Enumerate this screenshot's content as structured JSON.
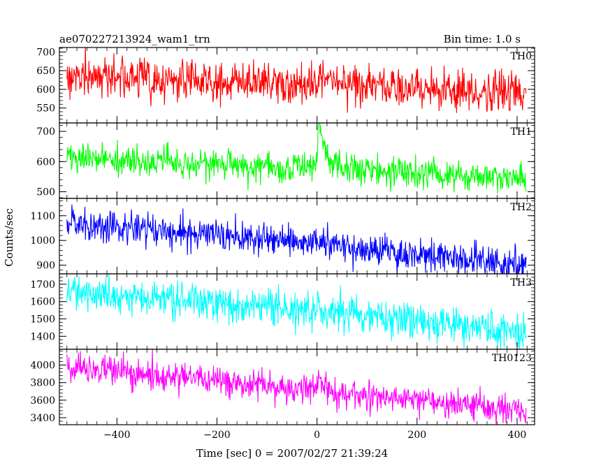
{
  "header": {
    "title": "ae070227213924_wam1_trn",
    "bin_time": "Bin time: 1.0 s"
  },
  "chart_data": {
    "type": "line",
    "xlabel": "Time [sec] 0 = 2007/02/27 21:39:24",
    "ylabel": "Counts/sec",
    "xlim": [
      -515,
      435
    ],
    "x_ticks": [
      -400,
      -200,
      0,
      200,
      400
    ],
    "x_tick_labels": [
      "−400",
      "−200",
      "0",
      "200",
      "400"
    ],
    "sample_start": -500,
    "sample_end": 418,
    "sample_step": 1,
    "panels": [
      {
        "name": "TH0",
        "color": "#ff0000",
        "ylim": [
          510,
          712
        ],
        "yticks": [
          550,
          600,
          650,
          700
        ],
        "trend": [
          [
            -500,
            640
          ],
          [
            -10,
            612
          ],
          [
            0,
            618
          ],
          [
            3,
            660
          ],
          [
            15,
            640
          ],
          [
            40,
            615
          ],
          [
            418,
            588
          ]
        ],
        "noise_sd": 27
      },
      {
        "name": "TH1",
        "color": "#00ff00",
        "ylim": [
          478,
          728
        ],
        "yticks": [
          500,
          600,
          700
        ],
        "trend": [
          [
            -500,
            610
          ],
          [
            -10,
            578
          ],
          [
            0,
            590
          ],
          [
            3,
            725
          ],
          [
            15,
            640
          ],
          [
            40,
            580
          ],
          [
            418,
            540
          ]
        ],
        "noise_sd": 24
      },
      {
        "name": "TH2",
        "color": "#0000ff",
        "ylim": [
          865,
          1170
        ],
        "yticks": [
          900,
          1000,
          1100
        ],
        "trend": [
          [
            -500,
            1075
          ],
          [
            -10,
            985
          ],
          [
            0,
            985
          ],
          [
            3,
            1000
          ],
          [
            15,
            990
          ],
          [
            40,
            975
          ],
          [
            418,
            900
          ]
        ],
        "noise_sd": 33
      },
      {
        "name": "TH3",
        "color": "#00ffff",
        "ylim": [
          1325,
          1760
        ],
        "yticks": [
          1400,
          1500,
          1600,
          1700
        ],
        "trend": [
          [
            -500,
            1660
          ],
          [
            -10,
            1545
          ],
          [
            0,
            1550
          ],
          [
            3,
            1560
          ],
          [
            15,
            1550
          ],
          [
            40,
            1540
          ],
          [
            418,
            1420
          ]
        ],
        "noise_sd": 50
      },
      {
        "name": "TH0123",
        "color": "#ff00ff",
        "ylim": [
          3320,
          4180
        ],
        "yticks": [
          3400,
          3600,
          3800,
          4000
        ],
        "trend": [
          [
            -500,
            3980
          ],
          [
            -10,
            3720
          ],
          [
            0,
            3740
          ],
          [
            3,
            3920
          ],
          [
            15,
            3780
          ],
          [
            40,
            3680
          ],
          [
            418,
            3480
          ]
        ],
        "noise_sd": 80
      }
    ]
  }
}
